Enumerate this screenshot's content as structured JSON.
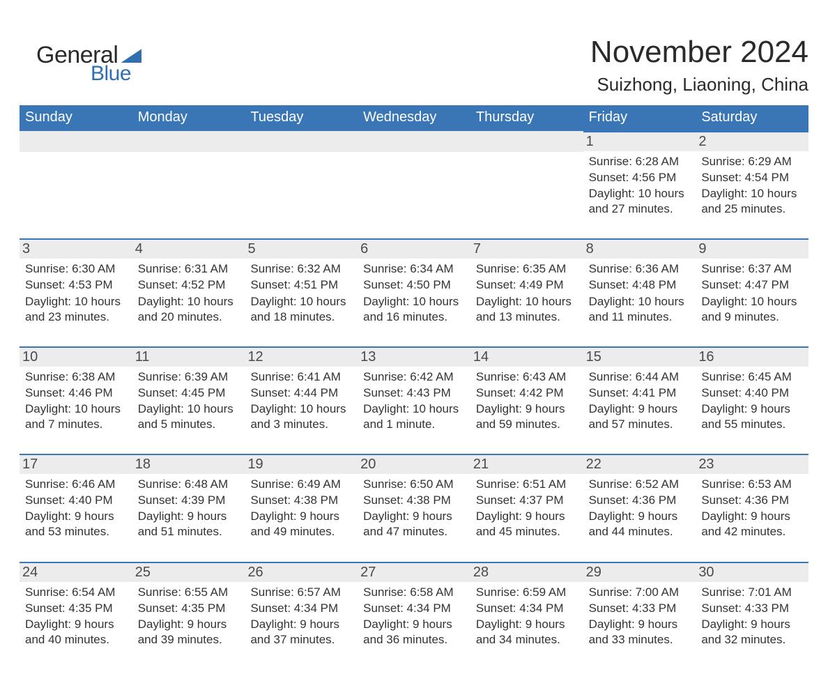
{
  "brand": {
    "word1": "General",
    "word2": "Blue",
    "accent_color": "#2f6fb0"
  },
  "title": "November 2024",
  "location": "Suizhong, Liaoning, China",
  "header_bg": "#3a76b5",
  "header_fg": "#ffffff",
  "day_head_bg": "#ececec",
  "day_head_border": "#3a76b5",
  "text_color": "#333333",
  "days_of_week": [
    "Sunday",
    "Monday",
    "Tuesday",
    "Wednesday",
    "Thursday",
    "Friday",
    "Saturday"
  ],
  "weeks": [
    [
      null,
      null,
      null,
      null,
      null,
      {
        "n": "1",
        "sunrise": "Sunrise: 6:28 AM",
        "sunset": "Sunset: 4:56 PM",
        "daylight": "Daylight: 10 hours and 27 minutes."
      },
      {
        "n": "2",
        "sunrise": "Sunrise: 6:29 AM",
        "sunset": "Sunset: 4:54 PM",
        "daylight": "Daylight: 10 hours and 25 minutes."
      }
    ],
    [
      {
        "n": "3",
        "sunrise": "Sunrise: 6:30 AM",
        "sunset": "Sunset: 4:53 PM",
        "daylight": "Daylight: 10 hours and 23 minutes."
      },
      {
        "n": "4",
        "sunrise": "Sunrise: 6:31 AM",
        "sunset": "Sunset: 4:52 PM",
        "daylight": "Daylight: 10 hours and 20 minutes."
      },
      {
        "n": "5",
        "sunrise": "Sunrise: 6:32 AM",
        "sunset": "Sunset: 4:51 PM",
        "daylight": "Daylight: 10 hours and 18 minutes."
      },
      {
        "n": "6",
        "sunrise": "Sunrise: 6:34 AM",
        "sunset": "Sunset: 4:50 PM",
        "daylight": "Daylight: 10 hours and 16 minutes."
      },
      {
        "n": "7",
        "sunrise": "Sunrise: 6:35 AM",
        "sunset": "Sunset: 4:49 PM",
        "daylight": "Daylight: 10 hours and 13 minutes."
      },
      {
        "n": "8",
        "sunrise": "Sunrise: 6:36 AM",
        "sunset": "Sunset: 4:48 PM",
        "daylight": "Daylight: 10 hours and 11 minutes."
      },
      {
        "n": "9",
        "sunrise": "Sunrise: 6:37 AM",
        "sunset": "Sunset: 4:47 PM",
        "daylight": "Daylight: 10 hours and 9 minutes."
      }
    ],
    [
      {
        "n": "10",
        "sunrise": "Sunrise: 6:38 AM",
        "sunset": "Sunset: 4:46 PM",
        "daylight": "Daylight: 10 hours and 7 minutes."
      },
      {
        "n": "11",
        "sunrise": "Sunrise: 6:39 AM",
        "sunset": "Sunset: 4:45 PM",
        "daylight": "Daylight: 10 hours and 5 minutes."
      },
      {
        "n": "12",
        "sunrise": "Sunrise: 6:41 AM",
        "sunset": "Sunset: 4:44 PM",
        "daylight": "Daylight: 10 hours and 3 minutes."
      },
      {
        "n": "13",
        "sunrise": "Sunrise: 6:42 AM",
        "sunset": "Sunset: 4:43 PM",
        "daylight": "Daylight: 10 hours and 1 minute."
      },
      {
        "n": "14",
        "sunrise": "Sunrise: 6:43 AM",
        "sunset": "Sunset: 4:42 PM",
        "daylight": "Daylight: 9 hours and 59 minutes."
      },
      {
        "n": "15",
        "sunrise": "Sunrise: 6:44 AM",
        "sunset": "Sunset: 4:41 PM",
        "daylight": "Daylight: 9 hours and 57 minutes."
      },
      {
        "n": "16",
        "sunrise": "Sunrise: 6:45 AM",
        "sunset": "Sunset: 4:40 PM",
        "daylight": "Daylight: 9 hours and 55 minutes."
      }
    ],
    [
      {
        "n": "17",
        "sunrise": "Sunrise: 6:46 AM",
        "sunset": "Sunset: 4:40 PM",
        "daylight": "Daylight: 9 hours and 53 minutes."
      },
      {
        "n": "18",
        "sunrise": "Sunrise: 6:48 AM",
        "sunset": "Sunset: 4:39 PM",
        "daylight": "Daylight: 9 hours and 51 minutes."
      },
      {
        "n": "19",
        "sunrise": "Sunrise: 6:49 AM",
        "sunset": "Sunset: 4:38 PM",
        "daylight": "Daylight: 9 hours and 49 minutes."
      },
      {
        "n": "20",
        "sunrise": "Sunrise: 6:50 AM",
        "sunset": "Sunset: 4:38 PM",
        "daylight": "Daylight: 9 hours and 47 minutes."
      },
      {
        "n": "21",
        "sunrise": "Sunrise: 6:51 AM",
        "sunset": "Sunset: 4:37 PM",
        "daylight": "Daylight: 9 hours and 45 minutes."
      },
      {
        "n": "22",
        "sunrise": "Sunrise: 6:52 AM",
        "sunset": "Sunset: 4:36 PM",
        "daylight": "Daylight: 9 hours and 44 minutes."
      },
      {
        "n": "23",
        "sunrise": "Sunrise: 6:53 AM",
        "sunset": "Sunset: 4:36 PM",
        "daylight": "Daylight: 9 hours and 42 minutes."
      }
    ],
    [
      {
        "n": "24",
        "sunrise": "Sunrise: 6:54 AM",
        "sunset": "Sunset: 4:35 PM",
        "daylight": "Daylight: 9 hours and 40 minutes."
      },
      {
        "n": "25",
        "sunrise": "Sunrise: 6:55 AM",
        "sunset": "Sunset: 4:35 PM",
        "daylight": "Daylight: 9 hours and 39 minutes."
      },
      {
        "n": "26",
        "sunrise": "Sunrise: 6:57 AM",
        "sunset": "Sunset: 4:34 PM",
        "daylight": "Daylight: 9 hours and 37 minutes."
      },
      {
        "n": "27",
        "sunrise": "Sunrise: 6:58 AM",
        "sunset": "Sunset: 4:34 PM",
        "daylight": "Daylight: 9 hours and 36 minutes."
      },
      {
        "n": "28",
        "sunrise": "Sunrise: 6:59 AM",
        "sunset": "Sunset: 4:34 PM",
        "daylight": "Daylight: 9 hours and 34 minutes."
      },
      {
        "n": "29",
        "sunrise": "Sunrise: 7:00 AM",
        "sunset": "Sunset: 4:33 PM",
        "daylight": "Daylight: 9 hours and 33 minutes."
      },
      {
        "n": "30",
        "sunrise": "Sunrise: 7:01 AM",
        "sunset": "Sunset: 4:33 PM",
        "daylight": "Daylight: 9 hours and 32 minutes."
      }
    ]
  ]
}
